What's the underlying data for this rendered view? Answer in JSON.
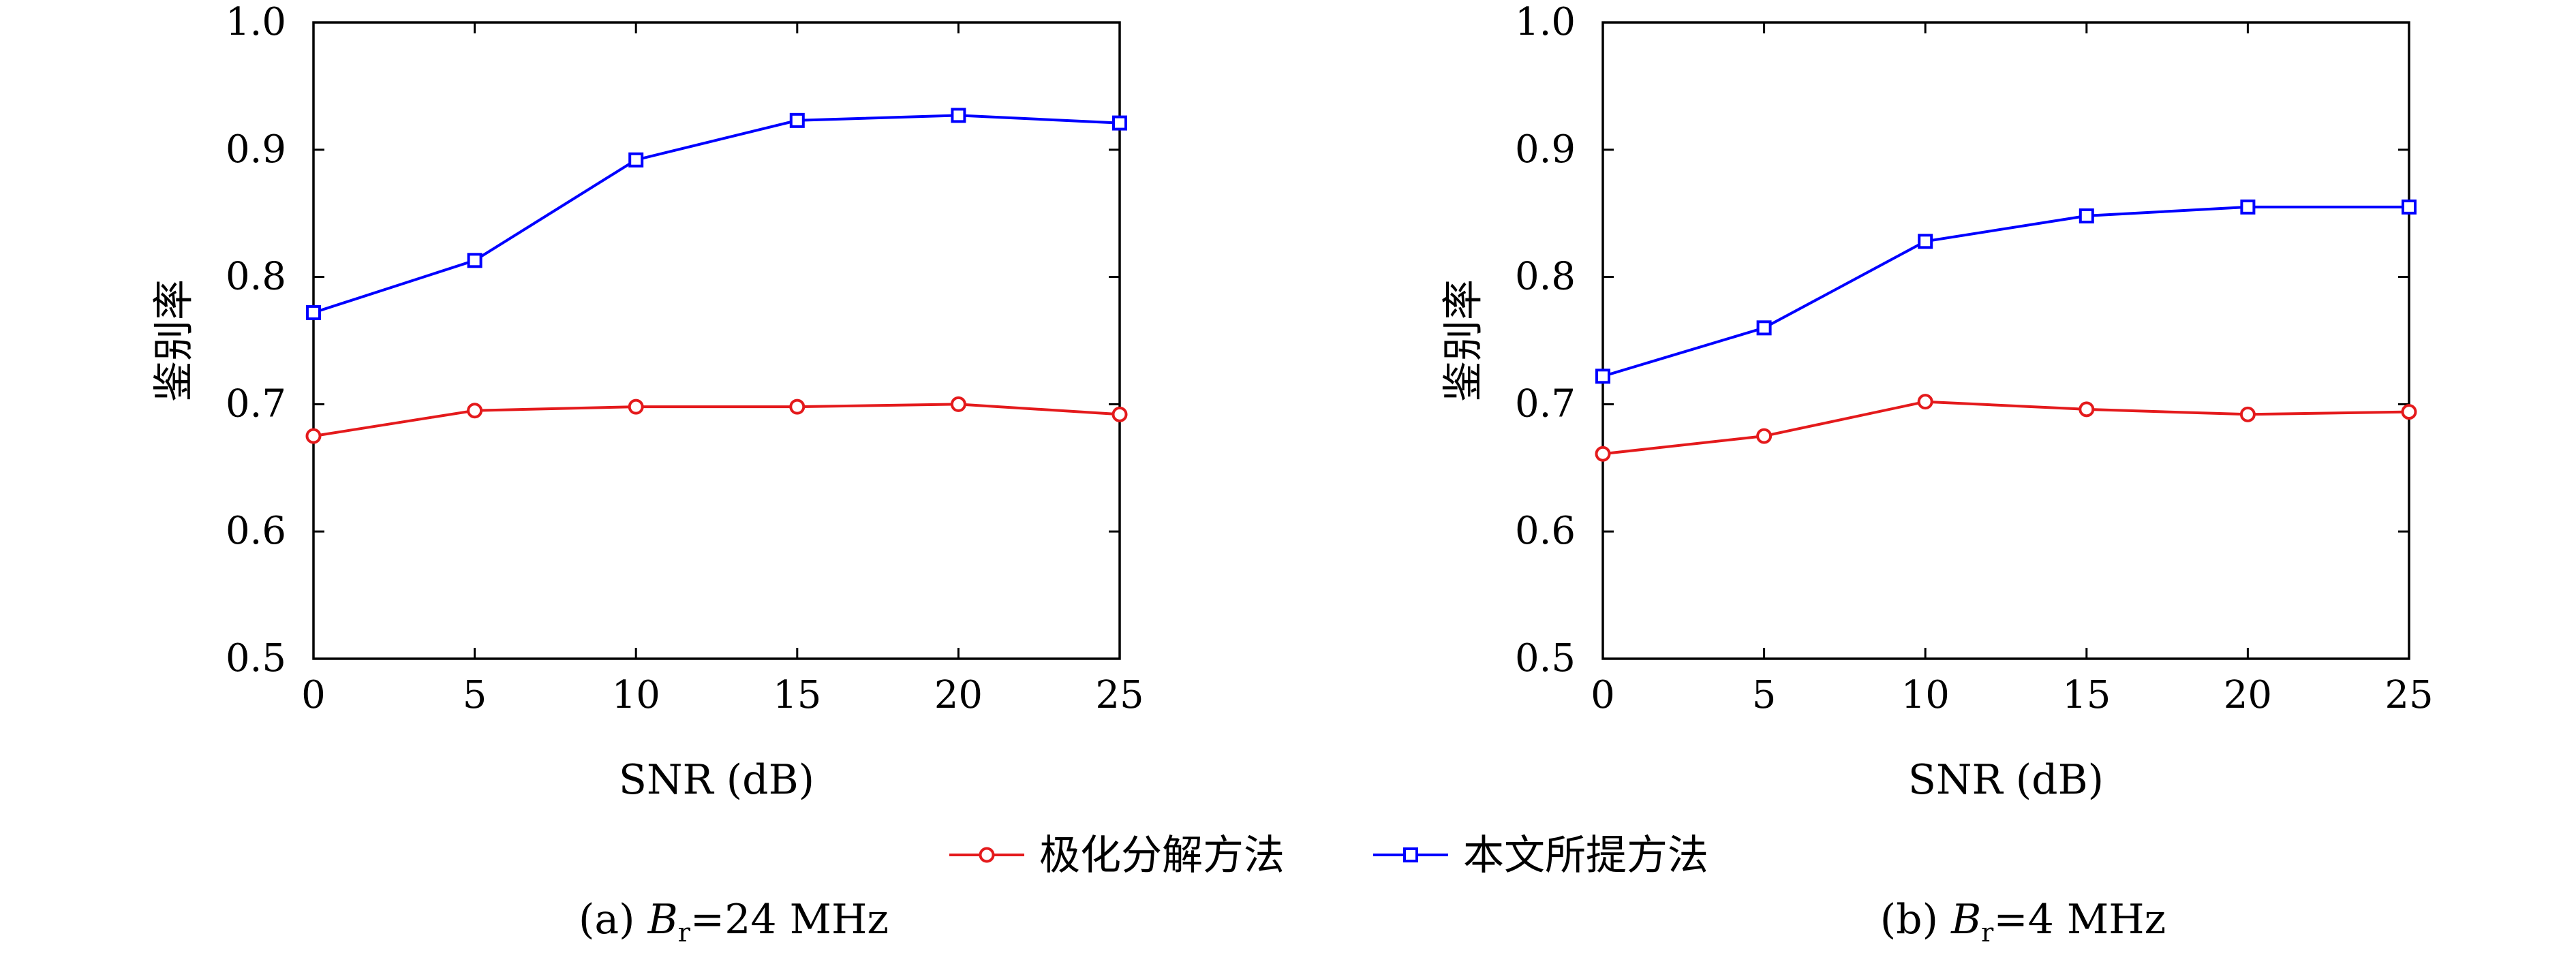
{
  "chart_data": [
    {
      "type": "line",
      "caption": {
        "prefix": "(a) ",
        "var": "B",
        "sub": "r",
        "suffix": "=24 MHz"
      },
      "xlabel": "SNR (dB)",
      "ylabel": "鉴别率",
      "x": [
        0,
        5,
        10,
        15,
        20,
        25
      ],
      "xlim": [
        0,
        25
      ],
      "ylim": [
        0.5,
        1.0
      ],
      "xticks": [
        "0",
        "5",
        "10",
        "15",
        "20",
        "25"
      ],
      "yticks": [
        "0.5",
        "0.6",
        "0.7",
        "0.8",
        "0.9",
        "1.0"
      ],
      "series": [
        {
          "name": "极化分解方法",
          "color": "#e41a1c",
          "marker": "circle",
          "values": [
            0.675,
            0.695,
            0.698,
            0.698,
            0.7,
            0.692
          ]
        },
        {
          "name": "本文所提方法",
          "color": "#0000ff",
          "marker": "square",
          "values": [
            0.772,
            0.813,
            0.892,
            0.923,
            0.927,
            0.921
          ]
        }
      ]
    },
    {
      "type": "line",
      "caption": {
        "prefix": "(b) ",
        "var": "B",
        "sub": "r",
        "suffix": "=4 MHz"
      },
      "xlabel": "SNR (dB)",
      "ylabel": "鉴别率",
      "x": [
        0,
        5,
        10,
        15,
        20,
        25
      ],
      "xlim": [
        0,
        25
      ],
      "ylim": [
        0.5,
        1.0
      ],
      "xticks": [
        "0",
        "5",
        "10",
        "15",
        "20",
        "25"
      ],
      "yticks": [
        "0.5",
        "0.6",
        "0.7",
        "0.8",
        "0.9",
        "1.0"
      ],
      "series": [
        {
          "name": "极化分解方法",
          "color": "#e41a1c",
          "marker": "circle",
          "values": [
            0.661,
            0.675,
            0.702,
            0.696,
            0.692,
            0.694
          ]
        },
        {
          "name": "本文所提方法",
          "color": "#0000ff",
          "marker": "square",
          "values": [
            0.722,
            0.76,
            0.828,
            0.848,
            0.855,
            0.855
          ]
        }
      ]
    }
  ],
  "legend": [
    {
      "label": "极化分解方法",
      "color": "#e41a1c",
      "marker": "circle"
    },
    {
      "label": "本文所提方法",
      "color": "#0000ff",
      "marker": "square"
    }
  ]
}
